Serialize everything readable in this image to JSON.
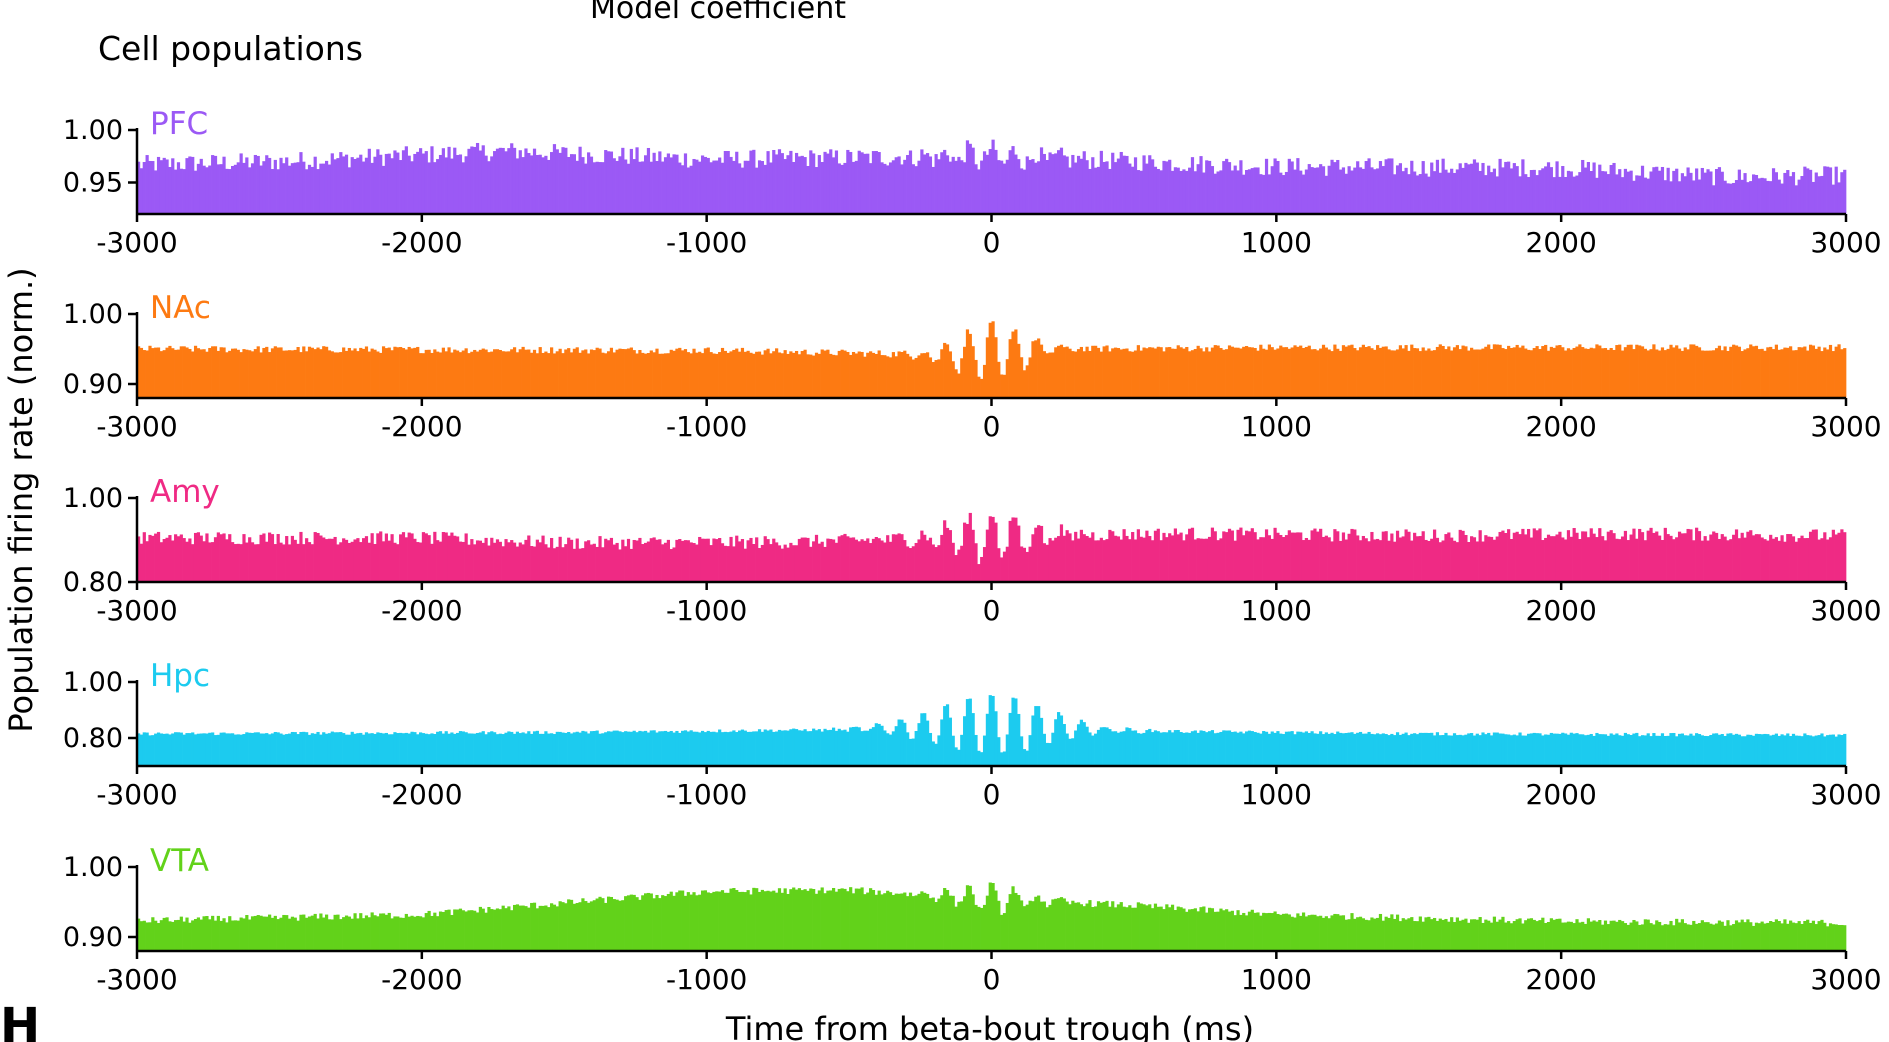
{
  "header": {
    "cut_text": "Model coefficient",
    "section_title": "Cell populations"
  },
  "panel_letter": "H",
  "ylabel": "Population firing rate (norm.)",
  "xlabel": "Time from beta-bout trough (ms)",
  "chart_data": [
    {
      "type": "bar",
      "series_name": "PFC",
      "color": "#9b59f5",
      "xlim": [
        -3000,
        3000
      ],
      "ylim": [
        0.92,
        1.0
      ],
      "yticks": [
        "1.00",
        "0.95"
      ],
      "xticks": [
        -3000,
        -2000,
        -1000,
        0,
        1000,
        2000,
        3000
      ],
      "bin_ms": 10,
      "profile": {
        "x": [
          -3000,
          -2500,
          -1700,
          -1000,
          -100,
          0,
          500,
          1000,
          2000,
          2600,
          3000
        ],
        "y": [
          0.967,
          0.97,
          0.98,
          0.972,
          0.975,
          0.975,
          0.97,
          0.965,
          0.964,
          0.955,
          0.957
        ]
      },
      "noise": 0.009,
      "center_oscillation": {
        "amplitude": 0.008,
        "period_ms": 80,
        "width_ms": 150
      }
    },
    {
      "type": "bar",
      "series_name": "NAc",
      "color": "#fd7a12",
      "xlim": [
        -3000,
        3000
      ],
      "ylim": [
        0.88,
        1.0
      ],
      "yticks": [
        "1.00",
        "0.90"
      ],
      "xticks": [
        -3000,
        -2000,
        -1000,
        0,
        1000,
        2000,
        3000
      ],
      "bin_ms": 10,
      "profile": {
        "x": [
          -3000,
          -1000,
          -200,
          200,
          1000,
          3000
        ],
        "y": [
          0.95,
          0.948,
          0.942,
          0.95,
          0.952,
          0.952
        ]
      },
      "noise": 0.005,
      "center_oscillation": {
        "amplitude": 0.042,
        "period_ms": 80,
        "width_ms": 120
      }
    },
    {
      "type": "bar",
      "series_name": "Amy",
      "color": "#ef2a84",
      "xlim": [
        -3000,
        3000
      ],
      "ylim": [
        0.8,
        1.0
      ],
      "yticks": [
        "1.00",
        "0.80"
      ],
      "xticks": [
        -3000,
        -2000,
        -1000,
        0,
        1000,
        2000,
        3000
      ],
      "bin_ms": 10,
      "profile": {
        "x": [
          -3000,
          -2000,
          -1500,
          -700,
          -200,
          0,
          700,
          1500,
          2300,
          3000
        ],
        "y": [
          0.905,
          0.905,
          0.893,
          0.895,
          0.905,
          0.91,
          0.915,
          0.91,
          0.915,
          0.91
        ]
      },
      "noise": 0.016,
      "center_oscillation": {
        "amplitude": 0.06,
        "period_ms": 80,
        "width_ms": 140
      }
    },
    {
      "type": "bar",
      "series_name": "Hpc",
      "color": "#1ccbef",
      "xlim": [
        -3000,
        3000
      ],
      "ylim": [
        0.7,
        1.0
      ],
      "yticks": [
        "1.00",
        "0.80"
      ],
      "xticks": [
        -3000,
        -2000,
        -1000,
        0,
        1000,
        2000,
        3000
      ],
      "bin_ms": 10,
      "profile": {
        "x": [
          -3000,
          -1500,
          -500,
          0,
          500,
          1500,
          3000
        ],
        "y": [
          0.815,
          0.82,
          0.83,
          0.85,
          0.825,
          0.815,
          0.81
        ]
      },
      "noise": 0.006,
      "center_oscillation": {
        "amplitude": 0.11,
        "period_ms": 80,
        "width_ms": 200
      }
    },
    {
      "type": "bar",
      "series_name": "VTA",
      "color": "#62d21a",
      "xlim": [
        -3000,
        3000
      ],
      "ylim": [
        0.88,
        1.0
      ],
      "yticks": [
        "1.00",
        "0.90"
      ],
      "xticks": [
        -3000,
        -2000,
        -1000,
        0,
        1000,
        2000,
        3000
      ],
      "bin_ms": 10,
      "profile": {
        "x": [
          -3000,
          -2000,
          -1000,
          -500,
          0,
          500,
          1000,
          2000,
          3000
        ],
        "y": [
          0.923,
          0.932,
          0.965,
          0.967,
          0.955,
          0.945,
          0.932,
          0.922,
          0.92
        ]
      },
      "noise": 0.005,
      "center_oscillation": {
        "amplitude": 0.02,
        "period_ms": 80,
        "width_ms": 120
      }
    }
  ]
}
